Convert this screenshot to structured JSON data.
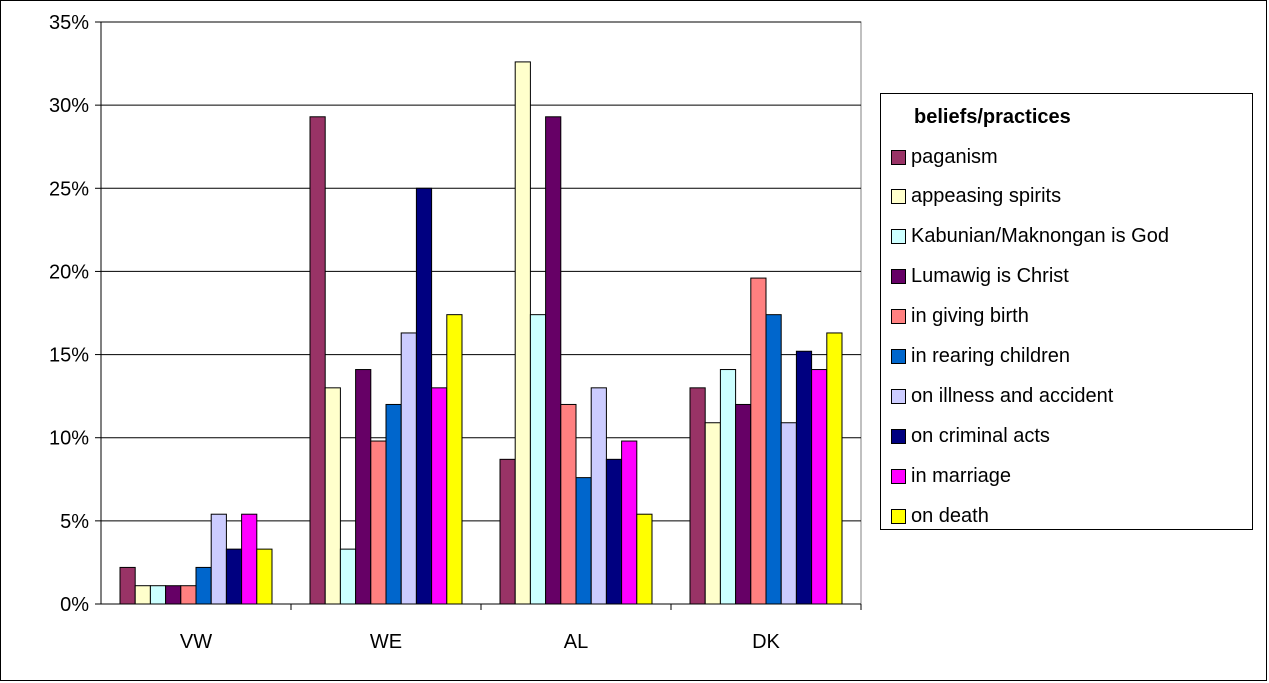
{
  "chart_data": {
    "type": "bar",
    "categories": [
      "VW",
      "WE",
      "AL",
      "DK"
    ],
    "ylim": [
      0,
      35
    ],
    "yticks": [
      "0%",
      "5%",
      "10%",
      "15%",
      "20%",
      "25%",
      "30%",
      "35%"
    ],
    "grid": true,
    "legend_title": "beliefs/practices",
    "legend_position": "right",
    "series": [
      {
        "name": "paganism",
        "color": "#993366",
        "values": [
          2.2,
          29.3,
          8.7,
          13.0
        ]
      },
      {
        "name": "appeasing spirits",
        "color": "#FFFFCC",
        "values": [
          1.1,
          13.0,
          32.6,
          10.9
        ]
      },
      {
        "name": "Kabunian/Maknongan is God",
        "color": "#CCFFFF",
        "values": [
          1.1,
          3.3,
          17.4,
          14.1
        ]
      },
      {
        "name": "Lumawig is Christ",
        "color": "#660066",
        "values": [
          1.1,
          14.1,
          29.3,
          12.0
        ]
      },
      {
        "name": "in giving birth",
        "color": "#FF8080",
        "values": [
          1.1,
          9.8,
          12.0,
          19.6
        ]
      },
      {
        "name": "in rearing children",
        "color": "#0066CC",
        "values": [
          2.2,
          12.0,
          7.6,
          17.4
        ]
      },
      {
        "name": "on illness and accident",
        "color": "#CCCCFF",
        "values": [
          5.4,
          16.3,
          13.0,
          10.9
        ]
      },
      {
        "name": "on criminal acts",
        "color": "#000080",
        "values": [
          3.3,
          25.0,
          8.7,
          15.2
        ]
      },
      {
        "name": "in marriage",
        "color": "#FF00FF",
        "values": [
          5.4,
          13.0,
          9.8,
          14.1
        ]
      },
      {
        "name": "on death",
        "color": "#FFFF00",
        "values": [
          3.3,
          17.4,
          5.4,
          16.3
        ]
      }
    ]
  }
}
